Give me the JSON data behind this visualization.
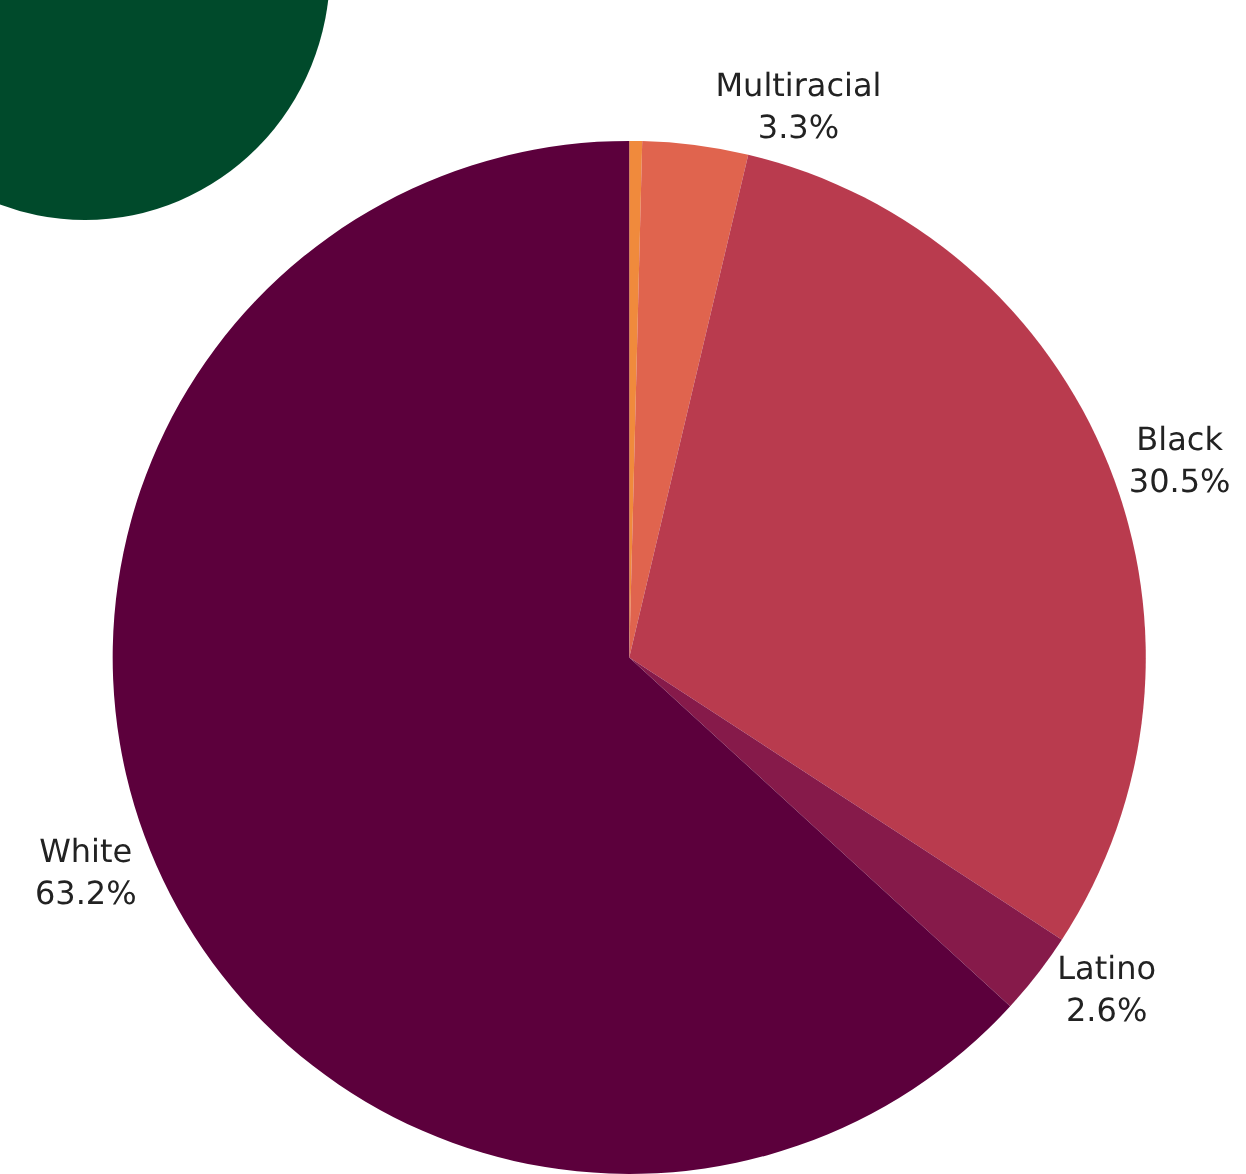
{
  "chart_data": {
    "type": "pie",
    "categories": [
      null,
      "Multiracial",
      "Black",
      "Latino",
      "White"
    ],
    "values": [
      0.4,
      3.3,
      30.5,
      2.6,
      63.2
    ],
    "value_labels": [
      null,
      "3.3%",
      "30.5%",
      "2.6%",
      "63.2%"
    ],
    "colors": [
      "#f08a3c",
      "#e0644e",
      "#b93b4e",
      "#861a4a",
      "#5c003c"
    ],
    "legend": false
  }
}
